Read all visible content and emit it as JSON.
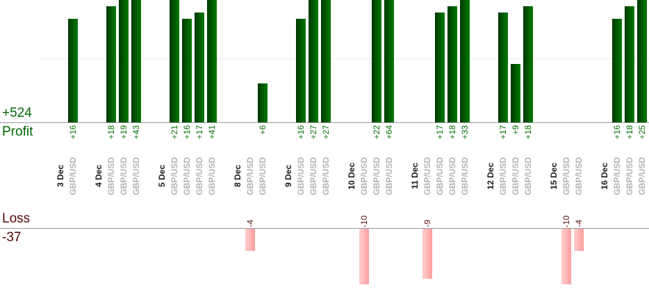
{
  "chart_data": {
    "type": "bar",
    "description": "Daily trading profit and loss bars per trade",
    "profit_axis": {
      "label": "Profit",
      "total": "+524"
    },
    "loss_axis": {
      "label": "Loss",
      "total": "-37"
    },
    "categories": [
      "3 Dec",
      "4 Dec",
      "5 Dec",
      "8 Dec",
      "9 Dec",
      "10 Dec",
      "11 Dec",
      "12 Dec",
      "15 Dec",
      "16 Dec"
    ],
    "groups": [
      {
        "date": "3 Dec",
        "trades": [
          {
            "symbol": "GBP/USD",
            "value": 16,
            "label": "+16"
          }
        ]
      },
      {
        "date": "4 Dec",
        "trades": [
          {
            "symbol": "GBP/USD",
            "value": 18,
            "label": "+18"
          },
          {
            "symbol": "GBP/USD",
            "value": 19,
            "label": "+19"
          },
          {
            "symbol": "GBP/USD",
            "value": 43,
            "label": "+43"
          }
        ]
      },
      {
        "date": "5 Dec",
        "trades": [
          {
            "symbol": "GBP/USD",
            "value": 21,
            "label": "+21"
          },
          {
            "symbol": "GBP/USD",
            "value": 16,
            "label": "+16"
          },
          {
            "symbol": "GBP/USD",
            "value": 17,
            "label": "+17"
          },
          {
            "symbol": "GBP/USD",
            "value": 41,
            "label": "+41"
          }
        ]
      },
      {
        "date": "8 Dec",
        "trades": [
          {
            "symbol": "GBP/USD",
            "value": -4,
            "label": "-4"
          },
          {
            "symbol": "GBP/USD",
            "value": 6,
            "label": "+6"
          }
        ]
      },
      {
        "date": "9 Dec",
        "trades": [
          {
            "symbol": "GBP/USD",
            "value": 16,
            "label": "+16"
          },
          {
            "symbol": "GBP/USD",
            "value": 27,
            "label": "+27"
          },
          {
            "symbol": "GBP/USD",
            "value": 27,
            "label": "+27"
          }
        ]
      },
      {
        "date": "10 Dec",
        "trades": [
          {
            "symbol": "GBP/USD",
            "value": -10,
            "label": "-10"
          },
          {
            "symbol": "GBP/USD",
            "value": 22,
            "label": "+22"
          },
          {
            "symbol": "GBP/USD",
            "value": 64,
            "label": "+64"
          }
        ]
      },
      {
        "date": "11 Dec",
        "trades": [
          {
            "symbol": "GBP/USD",
            "value": -9,
            "label": "-9"
          },
          {
            "symbol": "GBP/USD",
            "value": 17,
            "label": "+17"
          },
          {
            "symbol": "GBP/USD",
            "value": 18,
            "label": "+18"
          },
          {
            "symbol": "GBP/USD",
            "value": 33,
            "label": "+33"
          }
        ]
      },
      {
        "date": "12 Dec",
        "trades": [
          {
            "symbol": "GBP/USD",
            "value": 17,
            "label": "+17"
          },
          {
            "symbol": "GBP/USD",
            "value": 9,
            "label": "+9"
          },
          {
            "symbol": "GBP/USD",
            "value": 18,
            "label": "+18"
          }
        ]
      },
      {
        "date": "15 Dec",
        "trades": [
          {
            "symbol": "GBP/USD",
            "value": -10,
            "label": "-10"
          },
          {
            "symbol": "GBP/USD",
            "value": -4,
            "label": "-4"
          }
        ]
      },
      {
        "date": "16 Dec",
        "trades": [
          {
            "symbol": "GBP/USD",
            "value": 16,
            "label": "+16"
          },
          {
            "symbol": "GBP/USD",
            "value": 18,
            "label": "+18"
          },
          {
            "symbol": "GBP/USD",
            "value": 25,
            "label": "+25"
          }
        ]
      }
    ],
    "layout_hints": {
      "legend": "none",
      "profit_bars_clip_above_value": 19,
      "profit_gridline_value": 10,
      "bar_labels_rotated": "90deg counter-clockwise"
    },
    "colors": {
      "profit_text": "#006600",
      "profit_value_text": "#007000",
      "loss_text": "#550505",
      "loss_value_text": "#5a1111",
      "date_text": "#1a1a1a",
      "symbol_text": "#b3b3b3",
      "axis_line": "#999999",
      "gridline": "#ececec",
      "bar_green_dark": "#003800",
      "bar_green_light": "#007a00",
      "bar_pink_light": "#ffcccc",
      "bar_pink_dark": "#ff9c9c"
    }
  }
}
